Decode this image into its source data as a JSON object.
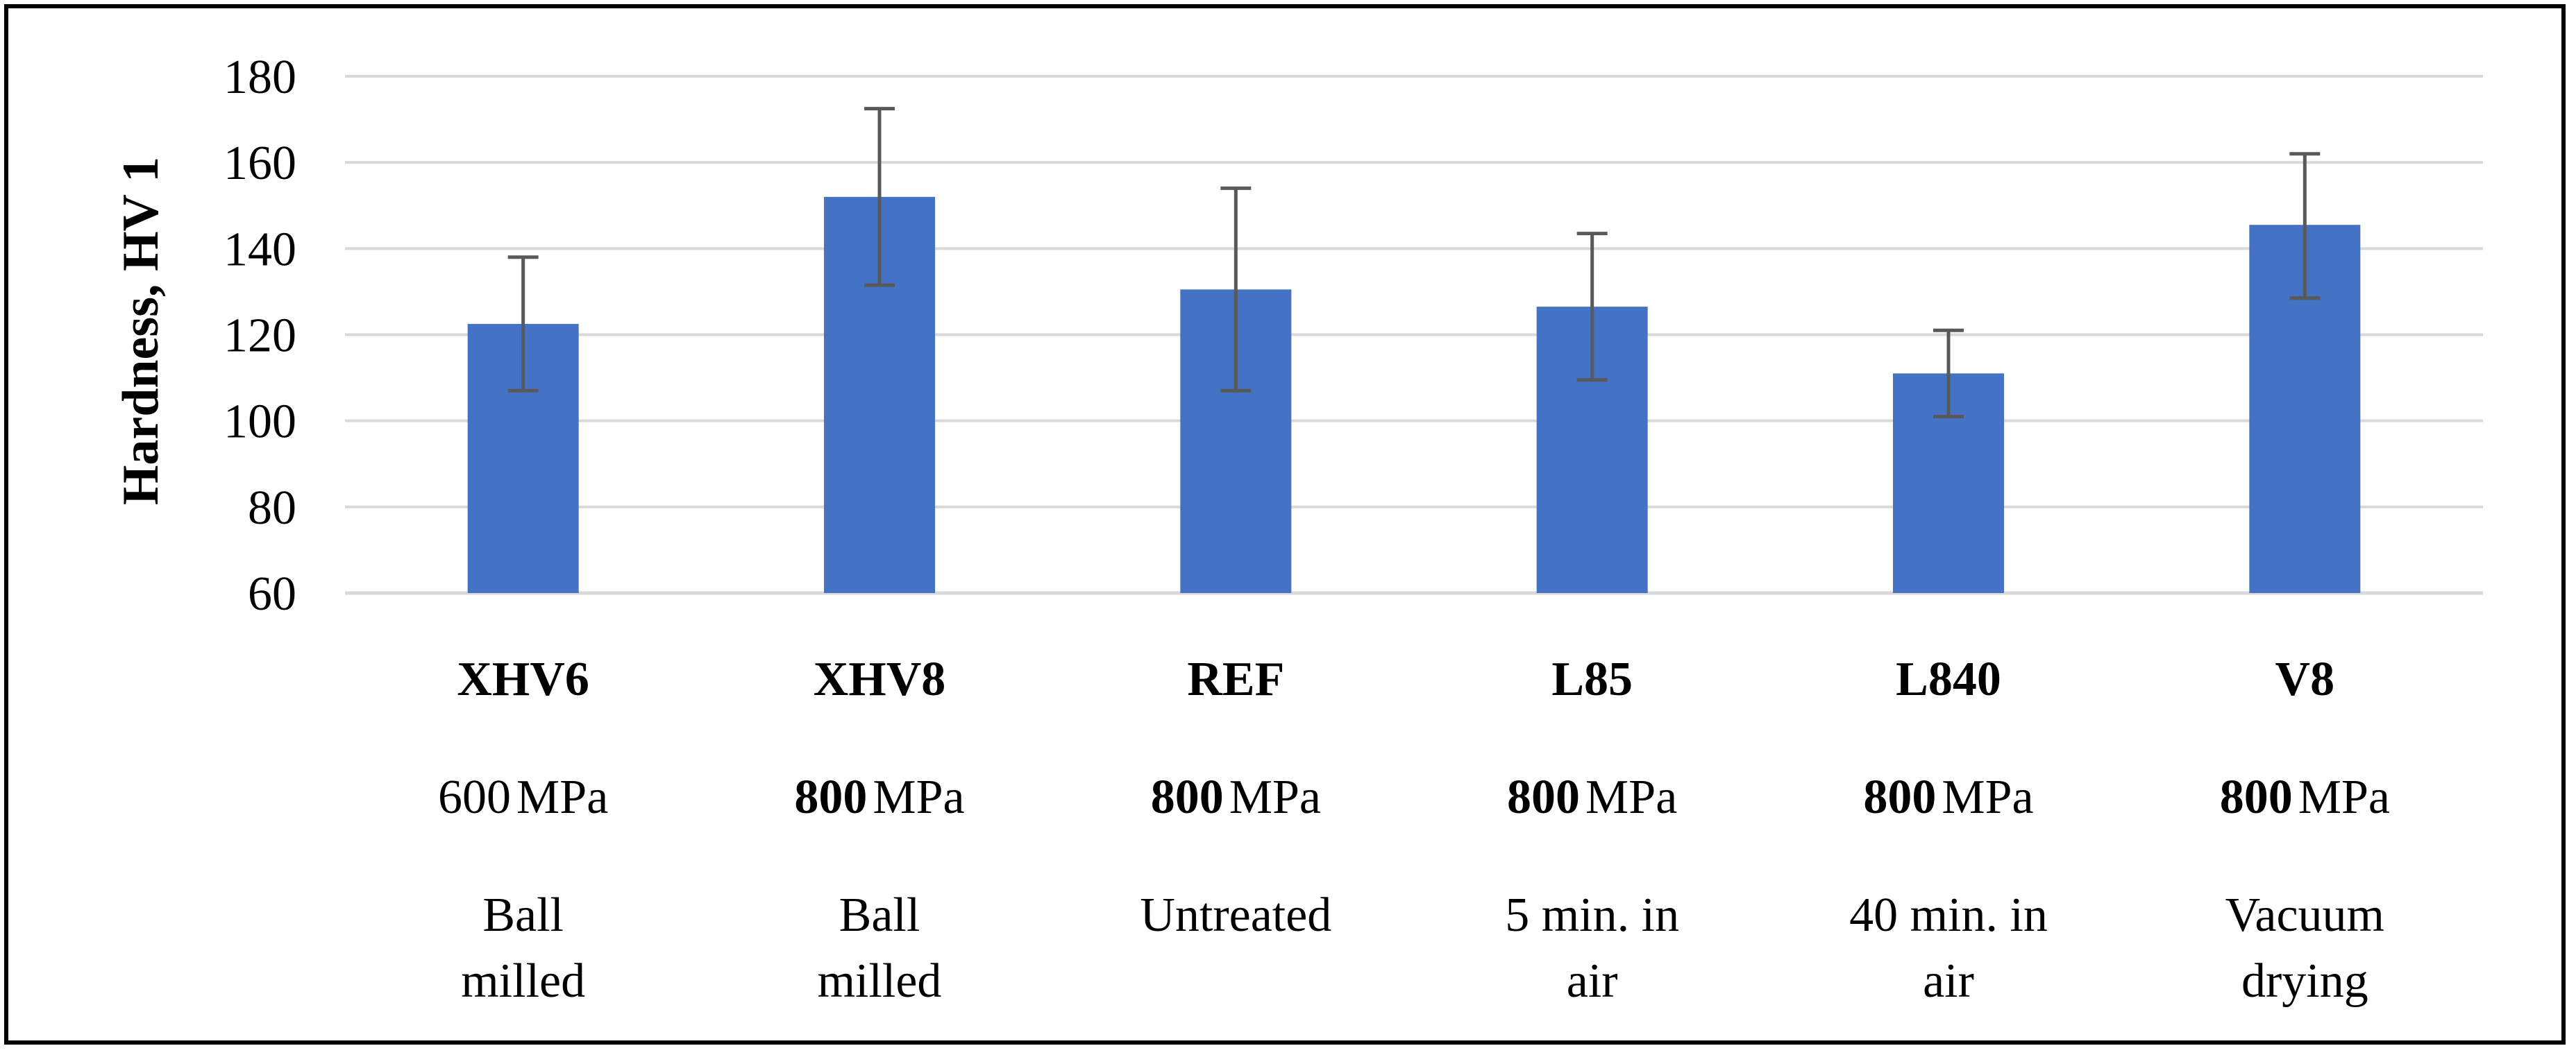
{
  "chart_data": {
    "type": "bar",
    "title": "",
    "xlabel": "",
    "ylabel": "Hardness, HV 1",
    "ylim": [
      60,
      180
    ],
    "yticks": [
      60,
      80,
      100,
      120,
      140,
      160,
      180
    ],
    "grid": true,
    "colors": {
      "bar": "#4472C4",
      "error_bar": "#595959",
      "grid": "#D9D9D9",
      "axis": "#D9D9D9"
    },
    "categories": [
      {
        "name": "XHV6",
        "pressure_value": "600",
        "pressure_unit": "MPa",
        "pressure_bold": false,
        "treatment": [
          "Ball",
          "milled"
        ]
      },
      {
        "name": "XHV8",
        "pressure_value": "800",
        "pressure_unit": "MPa",
        "pressure_bold": true,
        "treatment": [
          "Ball",
          "milled"
        ]
      },
      {
        "name": "REF",
        "pressure_value": "800",
        "pressure_unit": "MPa",
        "pressure_bold": true,
        "treatment": [
          "Untreated"
        ]
      },
      {
        "name": "L85",
        "pressure_value": "800",
        "pressure_unit": "MPa",
        "pressure_bold": true,
        "treatment": [
          "5 min. in",
          "air"
        ]
      },
      {
        "name": "L840",
        "pressure_value": "800",
        "pressure_unit": "MPa",
        "pressure_bold": true,
        "treatment": [
          "40 min. in",
          "air"
        ]
      },
      {
        "name": "V8",
        "pressure_value": "800",
        "pressure_unit": "MPa",
        "pressure_bold": true,
        "treatment": [
          "Vacuum",
          "drying"
        ]
      }
    ],
    "values": [
      122.5,
      152,
      130.5,
      126.5,
      111,
      145.5
    ],
    "error_low": [
      107,
      131.5,
      107,
      109.5,
      101,
      128.5
    ],
    "error_high": [
      138,
      172.5,
      154,
      143.5,
      121,
      162
    ]
  }
}
